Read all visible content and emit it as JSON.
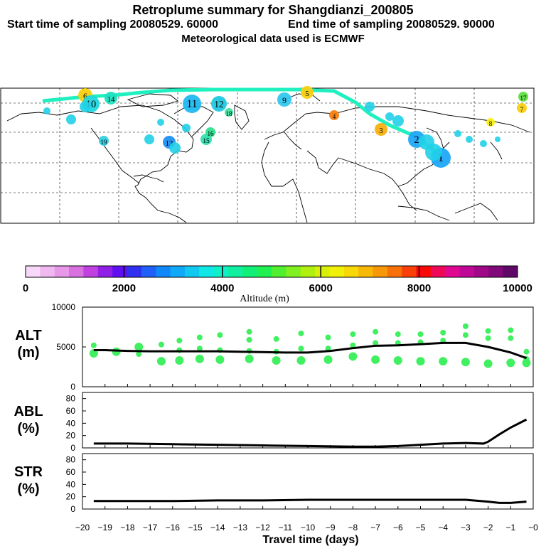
{
  "header": {
    "title": "Retroplume summary for Shangdianzi_200805",
    "start_sampling": "Start time of sampling 20080529. 60000",
    "end_sampling": "End time of sampling 20080529. 90000",
    "met_data": "Meteorological data used is ECMWF"
  },
  "colorbar": {
    "label": "Altitude (m)",
    "ticks": [
      "0",
      "2000",
      "4000",
      "6000",
      "8000",
      "10000"
    ],
    "colors": [
      "#f8d8f8",
      "#f0b8f0",
      "#e898e8",
      "#d870e0",
      "#c040e0",
      "#9020e8",
      "#6010f0",
      "#3030f0",
      "#2060f8",
      "#1088f8",
      "#10a8f8",
      "#10c8f0",
      "#10e8e8",
      "#10f0c8",
      "#10f0a0",
      "#10f078",
      "#20f050",
      "#50f030",
      "#80f020",
      "#b0f010",
      "#d8f008",
      "#f0f008",
      "#f8d808",
      "#f8b808",
      "#f89808",
      "#f87008",
      "#f84008",
      "#f80808",
      "#f00858",
      "#e00890",
      "#c00898",
      "#a00888",
      "#800878",
      "#600868"
    ]
  },
  "map": {
    "trajectory_labels": [
      {
        "text": "1",
        "color": "#20a8f8"
      },
      {
        "text": "2",
        "color": "#20a8f8"
      },
      {
        "text": "3",
        "color": "#f8b010"
      },
      {
        "text": "4",
        "color": "#f88010"
      },
      {
        "text": "5",
        "color": "#f8d010"
      },
      {
        "text": "6",
        "color": "#f8d010"
      },
      {
        "text": "7",
        "color": "#f8d010"
      },
      {
        "text": "8",
        "color": "#f8f010"
      },
      {
        "text": "9",
        "color": "#30c8f0"
      },
      {
        "text": "10",
        "color": "#20d8e0"
      },
      {
        "text": "11",
        "color": "#20b8f0"
      },
      {
        "text": "12",
        "color": "#20c8e0"
      },
      {
        "text": "13",
        "color": "#2090f0"
      },
      {
        "text": "14",
        "color": "#20e0c0"
      },
      {
        "text": "15",
        "color": "#30e0b0"
      },
      {
        "text": "16",
        "color": "#30e090"
      },
      {
        "text": "17",
        "color": "#60e040"
      },
      {
        "text": "18",
        "color": "#40e0a0"
      },
      {
        "text": "19",
        "color": "#30d0e0"
      }
    ]
  },
  "chart_data": [
    {
      "type": "line",
      "panel": "ALT",
      "ylabel_lines": [
        "ALT",
        "(m)"
      ],
      "ylim": [
        0,
        10000
      ],
      "yticks": [
        "10000",
        "5000",
        "0"
      ],
      "x": [
        -19.5,
        -19,
        -18,
        -17,
        -16,
        -15,
        -14,
        -13,
        -12,
        -11,
        -10,
        -9,
        -8,
        -7,
        -6,
        -5,
        -4,
        -3,
        -2,
        -1,
        -0.3
      ],
      "series": [
        {
          "name": "mean altitude",
          "values": [
            4600,
            4600,
            4500,
            4450,
            4450,
            4450,
            4450,
            4400,
            4350,
            4300,
            4300,
            4500,
            4850,
            5150,
            5200,
            5350,
            5500,
            5500,
            5000,
            4300,
            3600
          ]
        }
      ],
      "cluster_marks": [
        {
          "x": -19.5,
          "alts": [
            5200,
            4200
          ]
        },
        {
          "x": -18.5,
          "alts": [
            4400
          ]
        },
        {
          "x": -17.5,
          "alts": [
            4100,
            5000
          ]
        },
        {
          "x": -16.5,
          "alts": [
            5300,
            3200
          ]
        },
        {
          "x": -15.7,
          "alts": [
            5800,
            4600,
            3300
          ]
        },
        {
          "x": -14.8,
          "alts": [
            6200,
            4800,
            3500
          ]
        },
        {
          "x": -13.9,
          "alts": [
            6500,
            4600,
            3400
          ]
        },
        {
          "x": -12.6,
          "alts": [
            6900,
            5900,
            4500,
            3500
          ]
        },
        {
          "x": -11.4,
          "alts": [
            6000,
            4400,
            3300
          ]
        },
        {
          "x": -10.3,
          "alts": [
            6700,
            4800,
            3300
          ]
        },
        {
          "x": -9.1,
          "alts": [
            6200,
            4800,
            3400
          ]
        },
        {
          "x": -8,
          "alts": [
            6600,
            5200,
            3800
          ]
        },
        {
          "x": -7,
          "alts": [
            6900,
            5500,
            3400
          ]
        },
        {
          "x": -6,
          "alts": [
            6600,
            5500,
            3300
          ]
        },
        {
          "x": -5,
          "alts": [
            6600,
            5600,
            3200
          ]
        },
        {
          "x": -4,
          "alts": [
            6800,
            5800,
            3200
          ]
        },
        {
          "x": -3,
          "alts": [
            7600,
            6500,
            3100
          ]
        },
        {
          "x": -2,
          "alts": [
            7000,
            6100,
            2900
          ]
        },
        {
          "x": -1,
          "alts": [
            7100,
            6100,
            3000
          ]
        },
        {
          "x": -0.3,
          "alts": [
            4400,
            3500,
            3000
          ]
        }
      ]
    },
    {
      "type": "line",
      "panel": "ABL",
      "ylabel_lines": [
        "ABL",
        "(%)"
      ],
      "ylim": [
        0,
        90
      ],
      "yticks": [
        "80",
        "60",
        "40",
        "20",
        "0"
      ],
      "x": [
        -19.5,
        -18,
        -16,
        -14,
        -12,
        -10,
        -8,
        -7,
        -6,
        -5,
        -4,
        -3,
        -2.2,
        -2,
        -1.5,
        -1,
        -0.3
      ],
      "series": [
        {
          "name": "fraction in boundary layer",
          "values": [
            7,
            7,
            6,
            5,
            4,
            3,
            2,
            2,
            3,
            5,
            7,
            8,
            7,
            10,
            22,
            33,
            46
          ]
        }
      ]
    },
    {
      "type": "line",
      "panel": "STR",
      "ylabel_lines": [
        "STR",
        "(%)"
      ],
      "ylim": [
        0,
        90
      ],
      "yticks": [
        "80",
        "60",
        "40",
        "20",
        "0"
      ],
      "x": [
        -19.5,
        -18,
        -16,
        -14,
        -12,
        -10,
        -8,
        -6,
        -4,
        -3,
        -2,
        -1.5,
        -1,
        -0.3
      ],
      "series": [
        {
          "name": "stratospheric fraction",
          "values": [
            13,
            13,
            13,
            14,
            14,
            15,
            15,
            15,
            15,
            15,
            12,
            10,
            10,
            12
          ]
        }
      ]
    }
  ],
  "xaxis": {
    "label": "Travel time (days)",
    "ticks": [
      "−20",
      "−19",
      "−18",
      "−17",
      "−16",
      "−15",
      "−14",
      "−13",
      "−12",
      "−11",
      "−10",
      "−9",
      "−8",
      "−7",
      "−6",
      "−5",
      "−4",
      "−3",
      "−2",
      "−1",
      "−0"
    ],
    "tick_values": [
      -20,
      -19,
      -18,
      -17,
      -16,
      -15,
      -14,
      -13,
      -12,
      -11,
      -10,
      -9,
      -8,
      -7,
      -6,
      -5,
      -4,
      -3,
      -2,
      -1,
      0
    ]
  },
  "colors": {
    "marks": "#40f060",
    "line": "#000000"
  }
}
